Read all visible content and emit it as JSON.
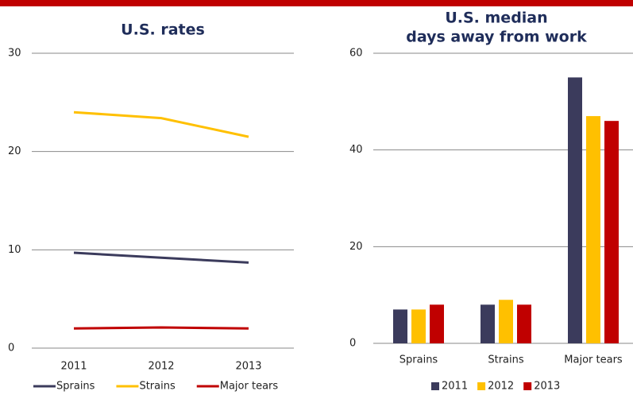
{
  "chart_data": [
    {
      "type": "line",
      "title": "U.S. rates",
      "categories": [
        "2011",
        "2012",
        "2013"
      ],
      "series": [
        {
          "name": "Sprains",
          "color": "#3b3b5c",
          "values": [
            9.7,
            9.2,
            8.7
          ]
        },
        {
          "name": "Strains",
          "color": "#ffc000",
          "values": [
            24.0,
            23.4,
            21.5
          ]
        },
        {
          "name": "Major tears",
          "color": "#c00000",
          "values": [
            2.0,
            2.1,
            2.0
          ]
        }
      ],
      "ylim": [
        0,
        30
      ],
      "yticks": [
        0,
        10,
        20,
        30
      ],
      "grid": true,
      "legend": "bottom"
    },
    {
      "type": "bar",
      "title": [
        "U.S. median",
        "days away from work"
      ],
      "categories": [
        "Sprains",
        "Strains",
        "Major tears"
      ],
      "series": [
        {
          "name": "2011",
          "color": "#3b3b5c",
          "values": [
            7,
            8,
            55
          ]
        },
        {
          "name": "2012",
          "color": "#ffc000",
          "values": [
            7,
            9,
            47
          ]
        },
        {
          "name": "2013",
          "color": "#c00000",
          "values": [
            8,
            8,
            46
          ]
        }
      ],
      "ylim": [
        0,
        60
      ],
      "yticks": [
        0,
        20,
        40,
        60
      ],
      "grid": true,
      "legend": "bottom"
    }
  ]
}
